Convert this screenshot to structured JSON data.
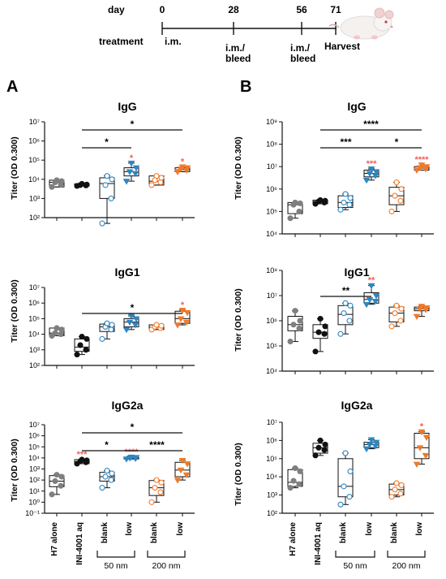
{
  "timeline": {
    "day_label": "day",
    "treatment_label": "treatment",
    "days": [
      "0",
      "28",
      "56",
      "71"
    ],
    "events": [
      "i.m.",
      "i.m./",
      "bleed",
      "i.m./",
      "bleed",
      "Harvest"
    ]
  },
  "panel_letters": [
    "A",
    "B"
  ],
  "y_label": "Titer (OD 0.300)",
  "x_labels": {
    "h7": "H7 alone",
    "ini": "INI-4001 aq",
    "blank": "blank",
    "low": "low",
    "group_50": "50 nm",
    "group_200": "200 nm"
  },
  "colors": {
    "gray": "#7f7f7f",
    "black": "#111111",
    "blue": "#2e86c1",
    "orange": "#f07a2a",
    "star_red": "#f0605a"
  },
  "chart_data": [
    {
      "type": "box",
      "panel": "A",
      "title": "IgG",
      "scale": "log",
      "ylim_exp": [
        2,
        7
      ],
      "tick_labels": [
        "10²",
        "10³",
        "10⁴",
        "10⁵",
        "10⁶",
        "10⁷"
      ],
      "groups": [
        {
          "color": "gray",
          "fill": true,
          "marker": "circle",
          "box": [
            4000,
            7000,
            9000
          ],
          "points": [
            4000,
            5500,
            7000,
            8000,
            9000
          ]
        },
        {
          "color": "black",
          "fill": true,
          "marker": "circle",
          "box": [
            4500,
            5000,
            5800
          ],
          "points": [
            4500,
            4800,
            5000,
            5300,
            5800
          ]
        },
        {
          "color": "blue",
          "fill": false,
          "marker": "circle",
          "box": [
            1000,
            6000,
            12000
          ],
          "whisk": [
            50,
            15000
          ],
          "points": [
            50,
            1000,
            5000,
            10000,
            15000
          ]
        },
        {
          "color": "blue",
          "fill": true,
          "marker": "triangle",
          "box": [
            15000,
            25000,
            40000
          ],
          "whisk": [
            8000,
            70000
          ],
          "points": [
            8000,
            20000,
            25000,
            40000,
            70000
          ],
          "star": "*"
        },
        {
          "color": "orange",
          "fill": false,
          "marker": "circle",
          "box": [
            5000,
            8000,
            15000
          ],
          "points": [
            5000,
            7000,
            9000,
            12000,
            15000
          ]
        },
        {
          "color": "orange",
          "fill": true,
          "marker": "triangle",
          "box": [
            25000,
            32000,
            40000
          ],
          "points": [
            25000,
            30000,
            35000,
            40000,
            45000
          ],
          "star": "*"
        }
      ],
      "brackets": [
        {
          "from": 1,
          "to": 3,
          "level": 0,
          "label": "*"
        },
        {
          "from": 1,
          "to": 5,
          "level": 1,
          "label": "*"
        }
      ]
    },
    {
      "type": "box",
      "panel": "A",
      "title": "IgG1",
      "scale": "log",
      "ylim_exp": [
        2,
        7
      ],
      "tick_labels": [
        "10²",
        "10³",
        "10⁴",
        "10⁵",
        "10⁶",
        "10⁷"
      ],
      "groups": [
        {
          "color": "gray",
          "fill": true,
          "marker": "circle",
          "box": [
            8000,
            12000,
            25000
          ],
          "points": [
            8000,
            10000,
            12000,
            20000,
            25000
          ]
        },
        {
          "color": "black",
          "fill": true,
          "marker": "circle",
          "box": [
            800,
            1500,
            5000
          ],
          "whisk": [
            500,
            7000
          ],
          "points": [
            500,
            1000,
            2000,
            5000,
            7000
          ]
        },
        {
          "color": "blue",
          "fill": false,
          "marker": "circle",
          "box": [
            15000,
            30000,
            45000
          ],
          "whisk": [
            5000,
            50000
          ],
          "points": [
            5000,
            20000,
            30000,
            40000,
            50000
          ]
        },
        {
          "color": "blue",
          "fill": true,
          "marker": "triangle",
          "box": [
            30000,
            60000,
            100000
          ],
          "whisk": [
            20000,
            150000
          ],
          "points": [
            20000,
            40000,
            60000,
            100000,
            150000
          ]
        },
        {
          "color": "orange",
          "fill": false,
          "marker": "circle",
          "box": [
            20000,
            28000,
            40000
          ],
          "points": [
            20000,
            25000,
            30000,
            35000,
            40000
          ]
        },
        {
          "color": "orange",
          "fill": true,
          "marker": "triangle",
          "box": [
            50000,
            100000,
            300000
          ],
          "whisk": [
            40000,
            350000
          ],
          "points": [
            40000,
            60000,
            100000,
            250000,
            350000
          ],
          "star": "*"
        }
      ],
      "brackets": [
        {
          "from": 1,
          "to": 5,
          "level": 0,
          "label": "*"
        }
      ]
    },
    {
      "type": "box",
      "panel": "A",
      "title": "IgG2a",
      "scale": "log",
      "ylim_exp": [
        -1,
        7
      ],
      "tick_labels": [
        "10⁻¹",
        "10⁰",
        "10¹",
        "10²",
        "10³",
        "10⁴",
        "10⁵",
        "10⁶",
        "10⁷"
      ],
      "groups": [
        {
          "color": "gray",
          "fill": true,
          "marker": "circle",
          "box": [
            25,
            80,
            250
          ],
          "whisk": [
            5,
            300
          ],
          "points": [
            5,
            30,
            80,
            200,
            300
          ]
        },
        {
          "color": "black",
          "fill": true,
          "marker": "circle",
          "box": [
            3000,
            4500,
            7000
          ],
          "points": [
            3000,
            4000,
            5000,
            6000,
            7000
          ],
          "star": "***"
        },
        {
          "color": "blue",
          "fill": false,
          "marker": "circle",
          "box": [
            80,
            200,
            500
          ],
          "whisk": [
            20,
            700
          ],
          "points": [
            20,
            100,
            200,
            400,
            700
          ]
        },
        {
          "color": "blue",
          "fill": true,
          "marker": "triangle",
          "box": [
            8000,
            9500,
            11000
          ],
          "points": [
            8000,
            9000,
            10000,
            11000,
            12000
          ],
          "star": "****"
        },
        {
          "color": "orange",
          "fill": false,
          "marker": "circle",
          "box": [
            4,
            20,
            90
          ],
          "whisk": [
            1,
            100
          ],
          "points": [
            1,
            8,
            20,
            60,
            100
          ]
        },
        {
          "color": "orange",
          "fill": true,
          "marker": "triangle",
          "box": [
            200,
            800,
            4000
          ],
          "whisk": [
            100,
            6000
          ],
          "points": [
            100,
            300,
            800,
            3000,
            6000
          ]
        }
      ],
      "brackets": [
        {
          "from": 1,
          "to": 3,
          "level": 0,
          "label": "*"
        },
        {
          "from": 3,
          "to": 5,
          "level": 0,
          "label": "****"
        },
        {
          "from": 1,
          "to": 5,
          "level": 1,
          "label": "*"
        }
      ]
    },
    {
      "type": "box",
      "panel": "B",
      "title": "IgG",
      "scale": "log",
      "ylim_exp": [
        4,
        9
      ],
      "tick_labels": [
        "10⁴",
        "10⁵",
        "10⁶",
        "10⁷",
        "10⁸",
        "10⁹"
      ],
      "groups": [
        {
          "color": "gray",
          "fill": true,
          "marker": "circle",
          "box": [
            80000,
            200000,
            250000
          ],
          "whisk": [
            50000,
            250000
          ],
          "points": [
            50000,
            100000,
            200000,
            230000,
            250000
          ]
        },
        {
          "color": "black",
          "fill": true,
          "marker": "circle",
          "box": [
            220000,
            280000,
            320000
          ],
          "points": [
            220000,
            250000,
            280000,
            300000,
            320000
          ]
        },
        {
          "color": "blue",
          "fill": false,
          "marker": "circle",
          "box": [
            150000,
            250000,
            500000
          ],
          "whisk": [
            120000,
            600000
          ],
          "points": [
            120000,
            200000,
            250000,
            400000,
            600000
          ]
        },
        {
          "color": "blue",
          "fill": true,
          "marker": "triangle",
          "box": [
            3500000,
            5000000,
            7000000
          ],
          "whisk": [
            2500000,
            8000000
          ],
          "points": [
            2500000,
            4000000,
            5000000,
            6000000,
            8000000
          ],
          "star": "***"
        },
        {
          "color": "orange",
          "fill": false,
          "marker": "circle",
          "box": [
            200000,
            500000,
            1200000
          ],
          "whisk": [
            100000,
            2000000
          ],
          "points": [
            100000,
            300000,
            500000,
            1000000,
            2000000
          ]
        },
        {
          "color": "orange",
          "fill": true,
          "marker": "triangle",
          "box": [
            7000000,
            8500000,
            10000000
          ],
          "points": [
            7000000,
            8000000,
            9000000,
            10000000,
            12000000
          ],
          "star": "****"
        }
      ],
      "brackets": [
        {
          "from": 1,
          "to": 3,
          "level": 0,
          "label": "***"
        },
        {
          "from": 3,
          "to": 5,
          "level": 0,
          "label": "*"
        },
        {
          "from": 1,
          "to": 5,
          "level": 1,
          "label": "****"
        }
      ]
    },
    {
      "type": "box",
      "panel": "B",
      "title": "IgG1",
      "scale": "log",
      "ylim_exp": [
        4,
        8
      ],
      "tick_labels": [
        "10⁴",
        "10⁵",
        "10⁶",
        "10⁷",
        "10⁸"
      ],
      "groups": [
        {
          "color": "gray",
          "fill": true,
          "marker": "circle",
          "box": [
            400000,
            700000,
            1500000
          ],
          "whisk": [
            150000,
            2500000
          ],
          "points": [
            150000,
            500000,
            700000,
            1000000,
            2500000
          ]
        },
        {
          "color": "black",
          "fill": true,
          "marker": "circle",
          "box": [
            200000,
            350000,
            700000
          ],
          "whisk": [
            60000,
            1200000
          ],
          "points": [
            60000,
            300000,
            350000,
            600000,
            1200000
          ]
        },
        {
          "color": "blue",
          "fill": false,
          "marker": "circle",
          "box": [
            700000,
            1800000,
            4000000
          ],
          "whisk": [
            300000,
            5000000
          ],
          "points": [
            300000,
            1000000,
            2000000,
            4000000,
            5000000
          ]
        },
        {
          "color": "blue",
          "fill": true,
          "marker": "triangle",
          "box": [
            5000000,
            7000000,
            13000000
          ],
          "whisk": [
            4500000,
            25000000
          ],
          "points": [
            4500000,
            6000000,
            7000000,
            10000000,
            25000000
          ],
          "star": "**"
        },
        {
          "color": "orange",
          "fill": false,
          "marker": "circle",
          "box": [
            900000,
            2000000,
            3500000
          ],
          "whisk": [
            600000,
            4000000
          ],
          "points": [
            600000,
            1000000,
            2000000,
            3000000,
            4000000
          ]
        },
        {
          "color": "orange",
          "fill": true,
          "marker": "triangle",
          "box": [
            2500000,
            3000000,
            3500000
          ],
          "whisk": [
            1500000,
            3800000
          ],
          "points": [
            1500000,
            2800000,
            3000000,
            3300000,
            3800000
          ]
        }
      ],
      "brackets": [
        {
          "from": 1,
          "to": 3,
          "level": 0,
          "label": "**"
        }
      ]
    },
    {
      "type": "box",
      "panel": "B",
      "title": "IgG2a",
      "scale": "log",
      "ylim_exp": [
        2,
        7
      ],
      "tick_labels": [
        "10²",
        "10³",
        "10⁴",
        "10⁵",
        "10⁶",
        "10⁷"
      ],
      "groups": [
        {
          "color": "gray",
          "fill": true,
          "marker": "circle",
          "box": [
            3000,
            5000,
            25000
          ],
          "whisk": [
            2500,
            30000
          ],
          "points": [
            2500,
            4000,
            6000,
            20000,
            30000
          ]
        },
        {
          "color": "black",
          "fill": true,
          "marker": "circle",
          "box": [
            200000,
            400000,
            700000
          ],
          "whisk": [
            150000,
            1000000
          ],
          "points": [
            150000,
            300000,
            400000,
            600000,
            1000000
          ]
        },
        {
          "color": "blue",
          "fill": false,
          "marker": "circle",
          "box": [
            800,
            3000,
            100000
          ],
          "whisk": [
            300,
            200000
          ],
          "points": [
            300,
            800,
            3000,
            20000,
            200000
          ]
        },
        {
          "color": "blue",
          "fill": true,
          "marker": "triangle",
          "box": [
            400000,
            600000,
            800000
          ],
          "whisk": [
            350000,
            1100000
          ],
          "points": [
            350000,
            500000,
            600000,
            800000,
            1100000
          ]
        },
        {
          "color": "orange",
          "fill": false,
          "marker": "circle",
          "box": [
            1000,
            2000,
            4000
          ],
          "whisk": [
            800,
            4500
          ],
          "points": [
            800,
            1200,
            2000,
            3500,
            4500
          ]
        },
        {
          "color": "orange",
          "fill": true,
          "marker": "triangle",
          "box": [
            100000,
            400000,
            2500000
          ],
          "whisk": [
            50000,
            3000000
          ],
          "points": [
            50000,
            150000,
            400000,
            1500000,
            3000000
          ],
          "star": "*"
        }
      ],
      "brackets": []
    }
  ]
}
